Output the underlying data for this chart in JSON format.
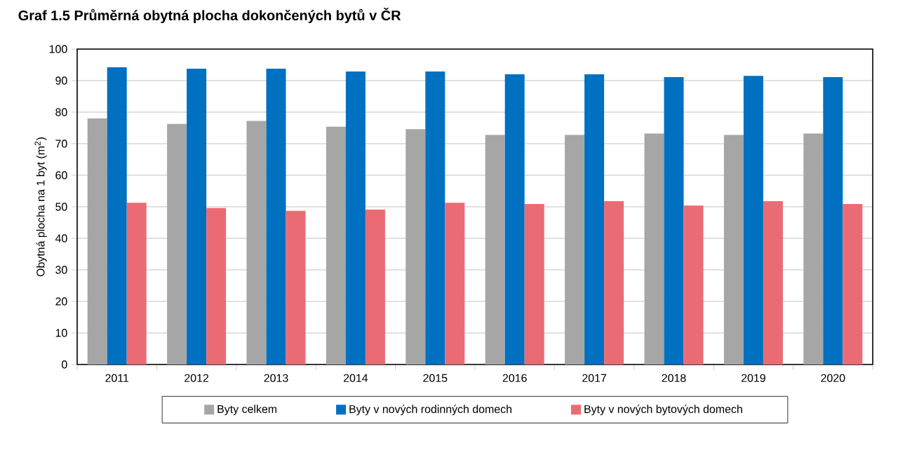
{
  "chart_data": {
    "type": "bar",
    "title": "Graf 1.5 Průměrná obytná plocha dokončených bytů v ČR",
    "ylabel": "Obytná plocha na 1 byt (m$^{2}$)",
    "categories": [
      "2011",
      "2012",
      "2013",
      "2014",
      "2015",
      "2016",
      "2017",
      "2018",
      "2019",
      "2020"
    ],
    "series": [
      {
        "name": "Byty celkem",
        "color": "#a6a6a6",
        "values": [
          78.0,
          76.3,
          77.2,
          75.4,
          74.6,
          72.8,
          72.8,
          73.2,
          72.8,
          73.2
        ]
      },
      {
        "name": "Byty v nových rodinných domech",
        "color": "#0070c0",
        "values": [
          94.2,
          93.8,
          93.8,
          92.9,
          92.9,
          92.0,
          92.0,
          91.1,
          91.5,
          91.1
        ]
      },
      {
        "name": "Byty v nových bytových domech",
        "color": "#eb6b75",
        "values": [
          51.3,
          49.6,
          48.7,
          49.1,
          51.3,
          50.9,
          51.8,
          50.4,
          51.8,
          50.9
        ]
      }
    ],
    "ylim": [
      0,
      100
    ],
    "yticks": [
      0,
      10,
      20,
      30,
      40,
      50,
      60,
      70,
      80,
      90,
      100
    ],
    "grid": "y",
    "legend": "bottom"
  }
}
